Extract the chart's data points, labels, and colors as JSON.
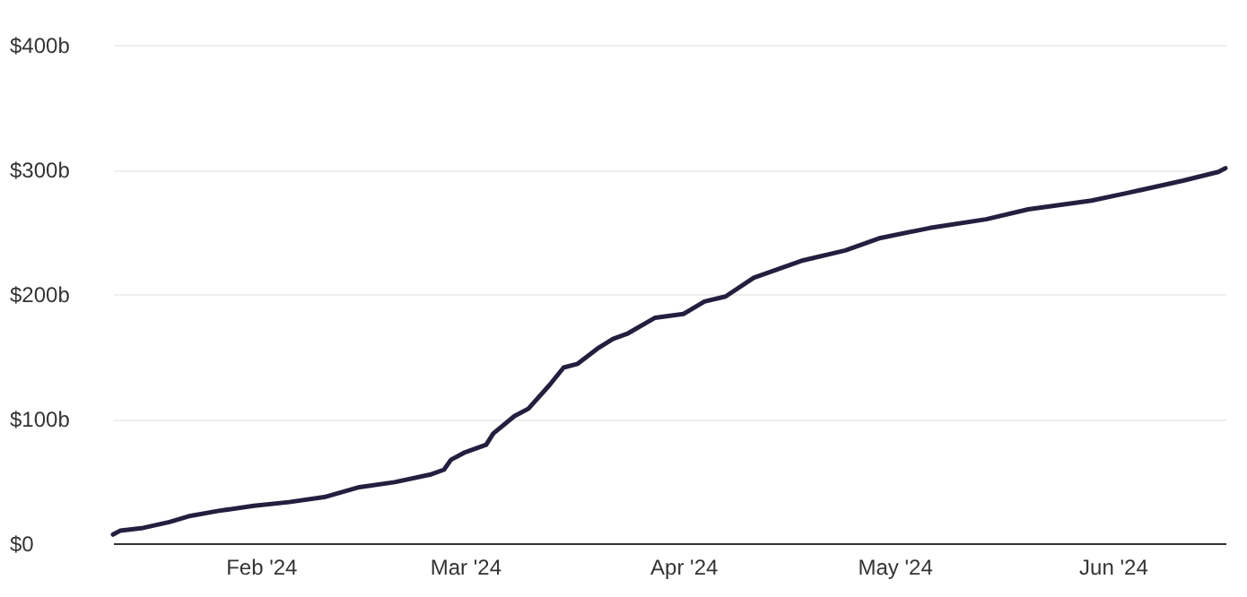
{
  "chart_data": {
    "type": "line",
    "x": [
      "2024-01-11",
      "2024-01-12",
      "2024-01-15",
      "2024-01-19",
      "2024-01-22",
      "2024-01-26",
      "2024-01-31",
      "2024-02-05",
      "2024-02-10",
      "2024-02-15",
      "2024-02-20",
      "2024-02-25",
      "2024-02-27",
      "2024-02-28",
      "2024-03-01",
      "2024-03-04",
      "2024-03-05",
      "2024-03-08",
      "2024-03-10",
      "2024-03-13",
      "2024-03-15",
      "2024-03-17",
      "2024-03-20",
      "2024-03-22",
      "2024-03-24",
      "2024-03-28",
      "2024-04-01",
      "2024-04-04",
      "2024-04-07",
      "2024-04-11",
      "2024-04-18",
      "2024-04-24",
      "2024-04-29",
      "2024-05-06",
      "2024-05-14",
      "2024-05-20",
      "2024-05-29",
      "2024-06-03",
      "2024-06-11",
      "2024-06-16",
      "2024-06-17"
    ],
    "series": [
      {
        "color": "#231f3f",
        "values": [
          7,
          10,
          12,
          17,
          22,
          26,
          30,
          33,
          37,
          45,
          49,
          55,
          59,
          67,
          73,
          79,
          88,
          102,
          108,
          127,
          141,
          144,
          157,
          164,
          168,
          181,
          184,
          194,
          198,
          213,
          227,
          235,
          245,
          253,
          260,
          268,
          275,
          281,
          291,
          298,
          301
        ]
      }
    ],
    "xlim": [
      "2024-01-11",
      "2024-06-17"
    ],
    "xticks": [
      {
        "value": "2024-02-01",
        "label": "Feb '24"
      },
      {
        "value": "2024-03-01",
        "label": "Mar '24"
      },
      {
        "value": "2024-04-01",
        "label": "Apr '24"
      },
      {
        "value": "2024-05-01",
        "label": "May '24"
      },
      {
        "value": "2024-06-01",
        "label": "Jun '24"
      }
    ],
    "ylim": [
      0,
      400
    ],
    "yticks": [
      {
        "value": 0,
        "label": "$0"
      },
      {
        "value": 100,
        "label": "$100b"
      },
      {
        "value": 200,
        "label": "$200b"
      },
      {
        "value": 300,
        "label": "$300b"
      },
      {
        "value": 400,
        "label": "$400b"
      }
    ],
    "grid": "y",
    "line_style": "solid"
  }
}
